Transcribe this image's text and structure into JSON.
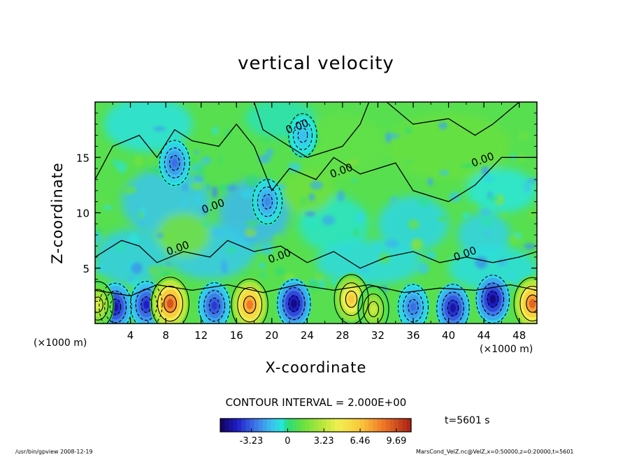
{
  "chart_data": {
    "type": "heatmap",
    "title": "vertical velocity",
    "xlabel": "X-coordinate",
    "ylabel": "Z-coordinate",
    "x_unit_label": "(×1000 m)",
    "xlim": [
      0,
      50
    ],
    "ylim": [
      0,
      20
    ],
    "x_ticks": [
      "4",
      "8",
      "12",
      "16",
      "20",
      "24",
      "28",
      "32",
      "36",
      "40",
      "44",
      "48"
    ],
    "y_ticks": [
      "5",
      "10",
      "15"
    ],
    "contour_interval": "CONTOUR INTERVAL = 2.000E+00",
    "contour_labels": [
      "0.00",
      "0.00",
      "0.00",
      "0.00",
      "0.00",
      "0.00",
      "0.00"
    ],
    "colorbar": {
      "ticks": [
        "-3.23",
        "0",
        "3.23",
        "6.46",
        "9.69"
      ],
      "range": [
        -6.0,
        11.0
      ]
    },
    "time_label": "t=5601 s",
    "updrafts": [
      {
        "x": 8.5,
        "z": 1.8,
        "w": 9.5
      },
      {
        "x": 17.5,
        "z": 1.7,
        "w": 8.5
      },
      {
        "x": 29.0,
        "z": 2.2,
        "w": 6.5
      },
      {
        "x": 31.5,
        "z": 1.3,
        "w": 3.5
      },
      {
        "x": 49.5,
        "z": 1.8,
        "w": 9.0
      },
      {
        "x": 0.3,
        "z": 1.7,
        "w": 4.0
      }
    ],
    "downdrafts": [
      {
        "x": 2.3,
        "z": 1.5,
        "w": -5.0
      },
      {
        "x": 5.8,
        "z": 1.7,
        "w": -4.5
      },
      {
        "x": 13.5,
        "z": 1.6,
        "w": -4.0
      },
      {
        "x": 22.5,
        "z": 1.8,
        "w": -5.5
      },
      {
        "x": 36.0,
        "z": 1.5,
        "w": -3.0
      },
      {
        "x": 40.5,
        "z": 1.4,
        "w": -5.0
      },
      {
        "x": 45.0,
        "z": 2.2,
        "w": -5.5
      },
      {
        "x": 9.0,
        "z": 14.5,
        "w": -3.0
      },
      {
        "x": 19.5,
        "z": 11.0,
        "w": -2.5
      },
      {
        "x": 23.5,
        "z": 17.0,
        "w": -1.5
      }
    ]
  },
  "footer": {
    "left": "/usr/bin/gpview   2008-12-19",
    "right": "MarsCond_VelZ.nc@VelZ,x=0:50000,z=0:20000,t=5601"
  }
}
